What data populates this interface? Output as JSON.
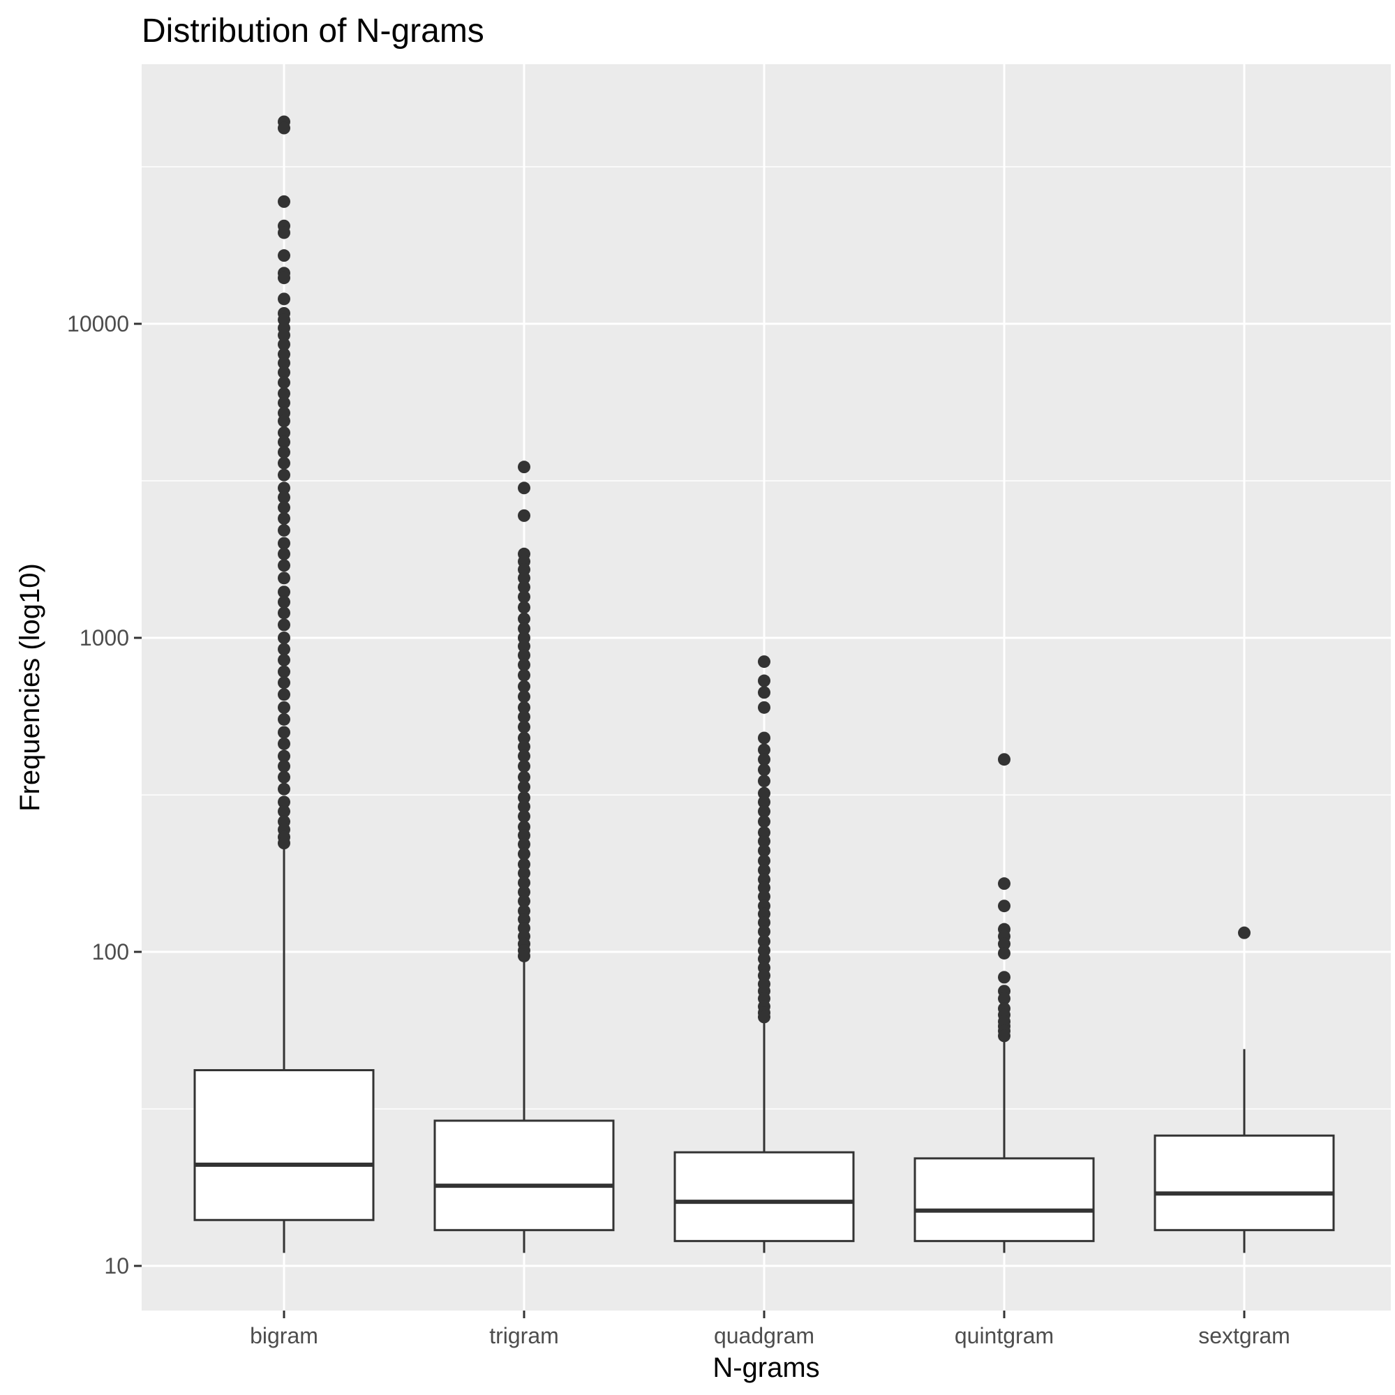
{
  "chart_data": {
    "type": "boxplot",
    "title": "Distribution of N-grams",
    "xlabel": "N-grams",
    "ylabel": "Frequencies (log10)",
    "y_scale": "log10",
    "ylim": [
      7.7,
      60000
    ],
    "y_ticks": [
      10,
      100,
      1000,
      10000
    ],
    "y_tick_labels": [
      "10",
      "100",
      "1000",
      "10000"
    ],
    "y_minor_ticks": [
      31.6,
      316,
      3162,
      31623
    ],
    "grid": true,
    "legend": "none",
    "categories": [
      "bigram",
      "trigram",
      "quadgram",
      "quintgram",
      "sextgram"
    ],
    "boxes": [
      {
        "name": "bigram",
        "min": 11,
        "q1": 14,
        "median": 21,
        "q3": 42,
        "max": 220,
        "outliers": [
          44000,
          42000,
          24500,
          20500,
          19500,
          16500,
          14500,
          14000,
          12000,
          10800,
          10300,
          9700,
          9200,
          8600,
          8000,
          7500,
          7000,
          6500,
          6000,
          5600,
          5200,
          4900,
          4500,
          4200,
          3900,
          3600,
          3300,
          3000,
          2800,
          2600,
          2400,
          2200,
          2000,
          1850,
          1700,
          1550,
          1400,
          1300,
          1200,
          1100,
          1000,
          920,
          850,
          780,
          720,
          660,
          600,
          550,
          500,
          460,
          420,
          390,
          360,
          330,
          300,
          280,
          260,
          245,
          232,
          222
        ]
      },
      {
        "name": "trigram",
        "min": 11,
        "q1": 13,
        "median": 18,
        "q3": 29,
        "max": 96,
        "outliers": [
          3500,
          3000,
          2450,
          1850,
          1750,
          1650,
          1550,
          1450,
          1350,
          1250,
          1150,
          1070,
          1000,
          940,
          880,
          820,
          760,
          700,
          650,
          600,
          560,
          520,
          480,
          450,
          420,
          390,
          360,
          335,
          310,
          290,
          270,
          250,
          235,
          220,
          205,
          190,
          178,
          166,
          155,
          145,
          135,
          127,
          119,
          112,
          106,
          101,
          97
        ]
      },
      {
        "name": "quadgram",
        "min": 11,
        "q1": 12,
        "median": 16,
        "q3": 23,
        "max": 61,
        "outliers": [
          840,
          730,
          670,
          600,
          480,
          440,
          410,
          380,
          350,
          320,
          300,
          280,
          260,
          240,
          225,
          210,
          195,
          182,
          170,
          160,
          150,
          140,
          132,
          124,
          116,
          108,
          101,
          95,
          89,
          84,
          79,
          75,
          71,
          67,
          64,
          62
        ]
      },
      {
        "name": "quintgram",
        "min": 11,
        "q1": 12,
        "median": 15,
        "q3": 22,
        "max": 53,
        "outliers": [
          410,
          165,
          140,
          118,
          112,
          106,
          99,
          83,
          75,
          71,
          66,
          63,
          60,
          58,
          56,
          54
        ]
      },
      {
        "name": "sextgram",
        "min": 11,
        "q1": 13,
        "median": 17,
        "q3": 26,
        "max": 49,
        "outliers": [
          115
        ]
      }
    ]
  },
  "colors": {
    "panel": "#ebebeb",
    "grid": "#ffffff",
    "box_fill": "#ffffff",
    "box_stroke": "#333333",
    "point": "#333333",
    "tick": "#333333",
    "tick_label": "#4d4d4d"
  }
}
